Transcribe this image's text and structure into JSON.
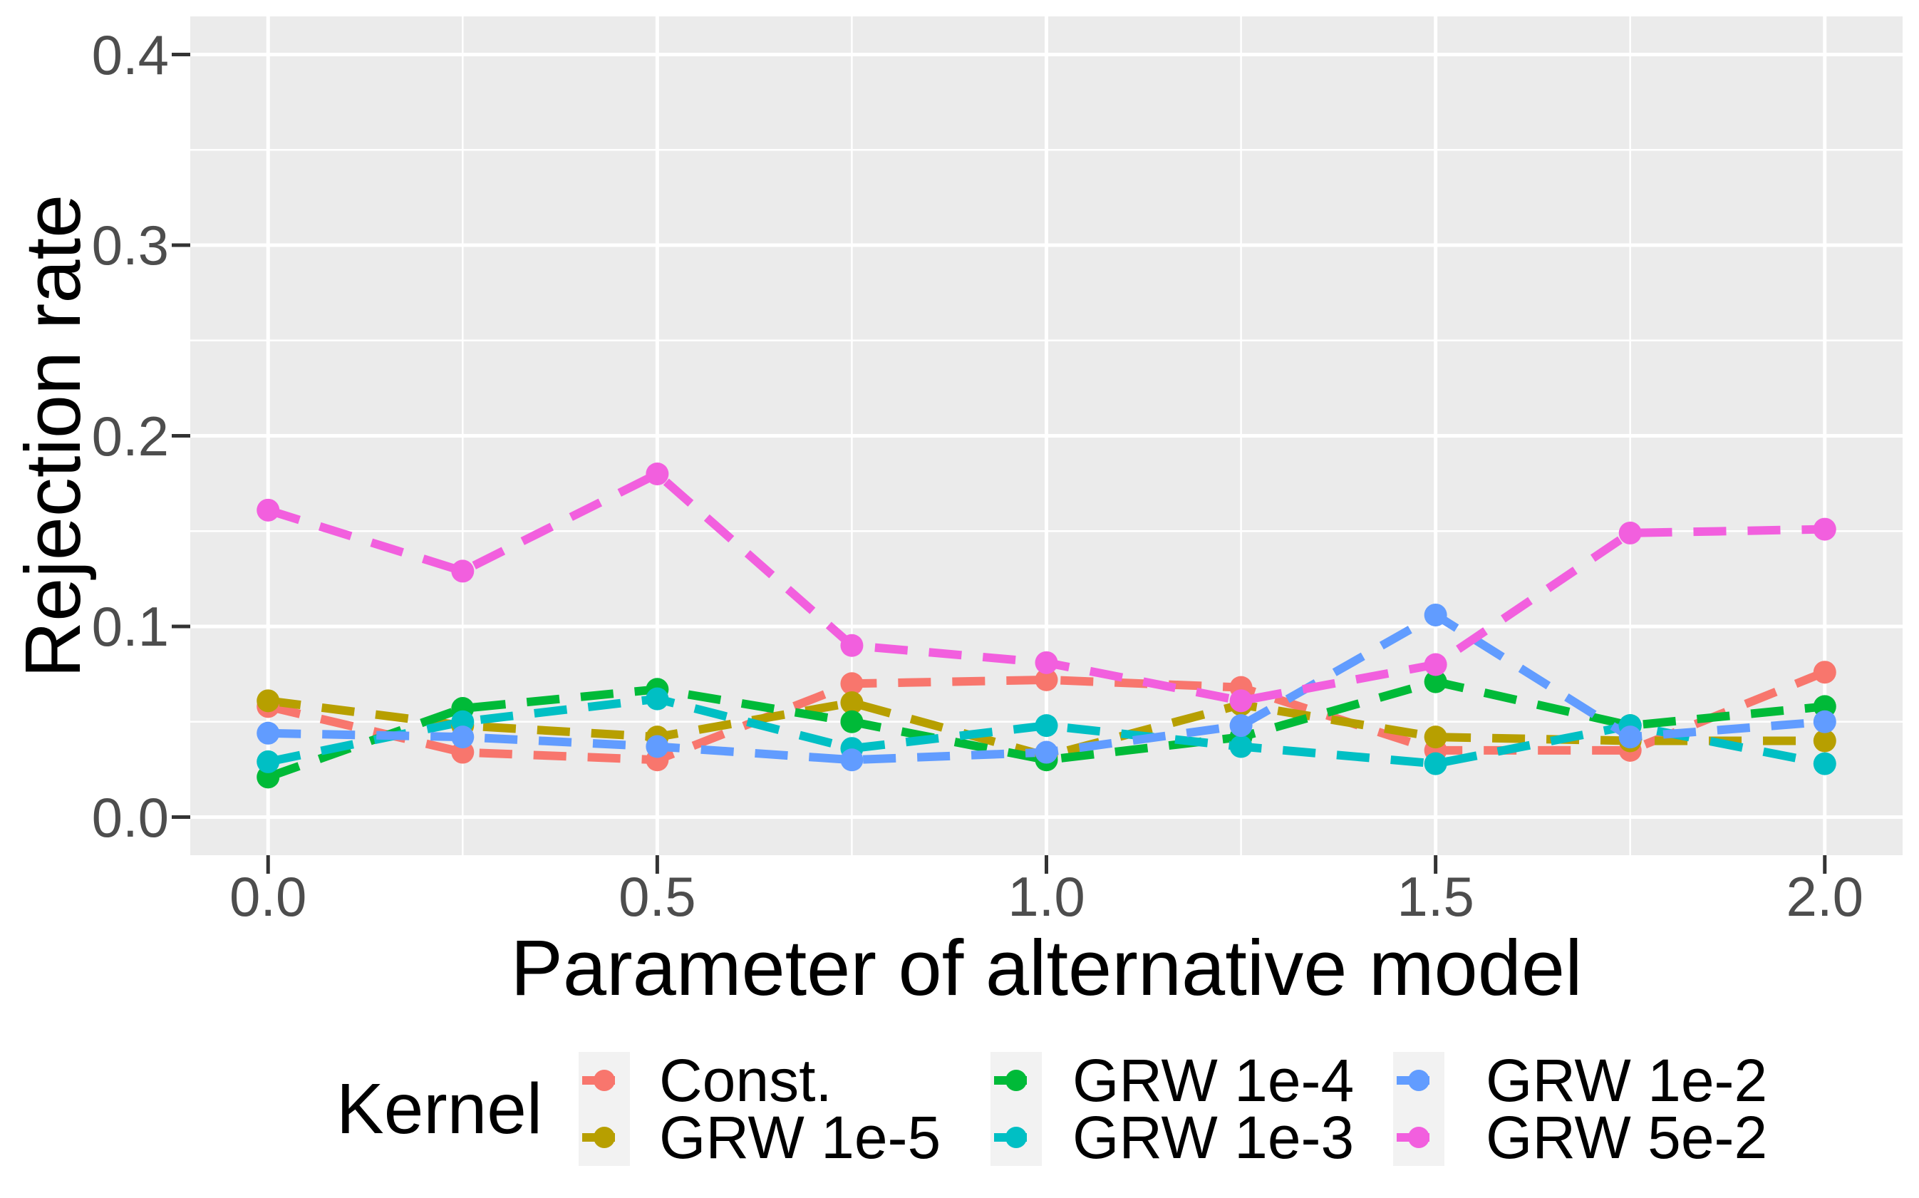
{
  "chart_data": {
    "type": "line",
    "title": "",
    "xlabel": "Parameter of alternative model",
    "ylabel": "Rejection rate",
    "x": [
      0,
      0.25,
      0.5,
      0.75,
      1.0,
      1.25,
      1.5,
      1.75,
      2.0
    ],
    "series": [
      {
        "name": "Const.",
        "color": "#F8766D",
        "values": [
          0.058,
          0.034,
          0.03,
          0.07,
          0.072,
          0.068,
          0.035,
          0.035,
          0.076
        ]
      },
      {
        "name": "GRW 1e-5",
        "color": "#B79F00",
        "values": [
          0.061,
          0.048,
          0.042,
          0.06,
          0.032,
          0.059,
          0.042,
          0.04,
          0.04
        ]
      },
      {
        "name": "GRW 1e-4",
        "color": "#00BA38",
        "values": [
          0.021,
          0.057,
          0.067,
          0.05,
          0.03,
          0.042,
          0.071,
          0.048,
          0.058
        ]
      },
      {
        "name": "GRW 1e-3",
        "color": "#00BFC4",
        "values": [
          0.029,
          0.05,
          0.062,
          0.036,
          0.048,
          0.037,
          0.028,
          0.048,
          0.028
        ]
      },
      {
        "name": "GRW 1e-2",
        "color": "#619CFF",
        "values": [
          0.044,
          0.042,
          0.037,
          0.03,
          0.034,
          0.048,
          0.106,
          0.042,
          0.05
        ]
      },
      {
        "name": "GRW 5e-2",
        "color": "#F25FDE",
        "values": [
          0.161,
          0.129,
          0.18,
          0.09,
          0.081,
          0.061,
          0.08,
          0.149,
          0.151
        ]
      }
    ],
    "x_ticks": {
      "values": [
        0,
        0.5,
        1.0,
        1.5,
        2.0
      ],
      "labels": [
        "0.0",
        "0.5",
        "1.0",
        "1.5",
        "2.0"
      ]
    },
    "y_ticks": {
      "values": [
        0,
        0.1,
        0.2,
        0.3,
        0.4
      ],
      "labels": [
        "0.0",
        "0.1",
        "0.2",
        "0.3",
        "0.4"
      ]
    },
    "x_minor": [
      0.25,
      0.75,
      1.25,
      1.75
    ],
    "y_minor": [
      0.05,
      0.15,
      0.25,
      0.35
    ],
    "xlim": [
      -0.1,
      2.1
    ],
    "ylim": [
      -0.02,
      0.42
    ],
    "grid": true,
    "line_style": "dashed",
    "legend": {
      "title": "Kernel",
      "position": "bottom"
    }
  },
  "colors": {
    "page_bg": "#FFFFFF",
    "panel_bg": "#EBEBEB",
    "grid": "#FFFFFF",
    "tick": "#333333",
    "tick_label": "#4D4D4D",
    "axis_title": "#000000",
    "legend_key_bg": "#F2F2F2"
  }
}
